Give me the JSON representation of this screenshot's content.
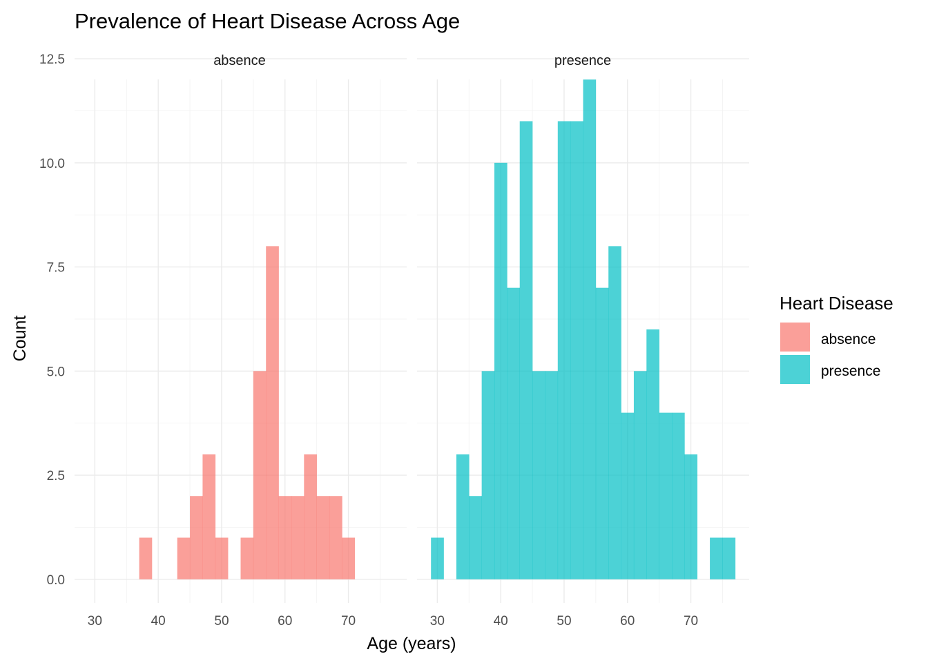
{
  "chart_data": {
    "type": "histogram",
    "title": "Prevalence of Heart Disease Across Age",
    "xlabel": "Age (years)",
    "ylabel": "Count",
    "xlim": [
      26.8,
      79.2
    ],
    "ylim": [
      -0.6,
      12.6
    ],
    "x_ticks": [
      30,
      40,
      50,
      60,
      70
    ],
    "x_tick_labels": [
      "30",
      "40",
      "50",
      "60",
      "70"
    ],
    "y_ticks": [
      0,
      2.5,
      5,
      7.5,
      10,
      12.5
    ],
    "y_tick_labels": [
      "0.0",
      "2.5",
      "5.0",
      "7.5",
      "10.0",
      "12.5"
    ],
    "bin_width": 2,
    "grid": true,
    "facet_by": "Heart Disease",
    "legend": {
      "title": "Heart Disease",
      "position": "right",
      "items": [
        {
          "label": "absence",
          "color": "#F8766D"
        },
        {
          "label": "presence",
          "color": "#00BFC4"
        }
      ]
    },
    "facets": [
      {
        "name": "absence",
        "color": "#F8766D",
        "bin_centers": [
          38,
          44,
          46,
          48,
          50,
          54,
          56,
          58,
          60,
          62,
          64,
          66,
          68,
          70
        ],
        "counts": [
          1,
          1,
          2,
          3,
          1,
          1,
          5,
          8,
          2,
          2,
          3,
          2,
          2,
          1
        ]
      },
      {
        "name": "presence",
        "color": "#00BFC4",
        "bin_centers": [
          30,
          34,
          36,
          38,
          40,
          42,
          44,
          46,
          48,
          50,
          52,
          54,
          56,
          58,
          60,
          62,
          64,
          66,
          68,
          70,
          74,
          76
        ],
        "counts": [
          1,
          3,
          2,
          5,
          10,
          7,
          11,
          5,
          5,
          11,
          11,
          12,
          7,
          8,
          4,
          5,
          6,
          4,
          4,
          3,
          1,
          1
        ]
      }
    ]
  }
}
